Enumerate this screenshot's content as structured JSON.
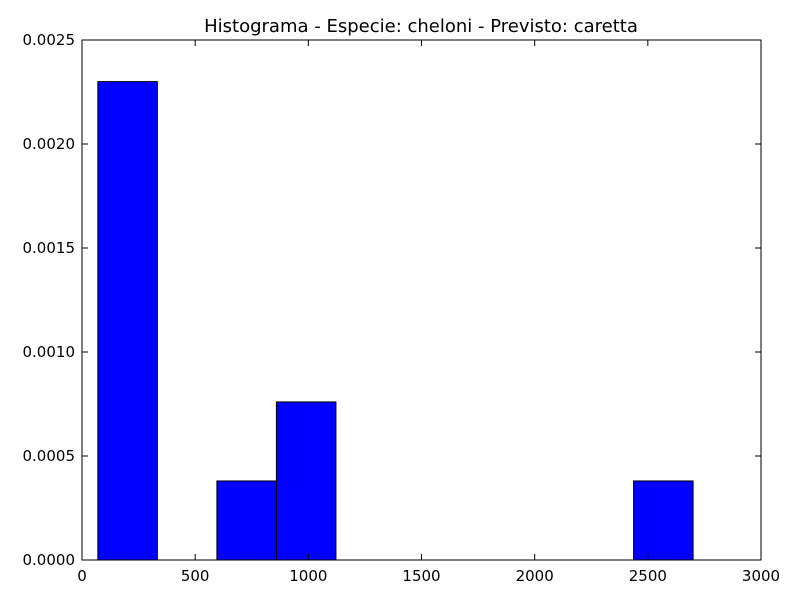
{
  "chart_data": {
    "type": "bar",
    "title": "Histograma - Especie: cheloni - Previsto: caretta",
    "xlabel": "",
    "ylabel": "",
    "xlim": [
      0,
      3000
    ],
    "ylim": [
      0,
      0.0025
    ],
    "x_ticks": [
      "0",
      "500",
      "1000",
      "1500",
      "2000",
      "2500",
      "3000"
    ],
    "y_ticks": [
      "0.0000",
      "0.0005",
      "0.0010",
      "0.0015",
      "0.0020",
      "0.0025"
    ],
    "grid": false,
    "legend": "none",
    "bar_color": "#0000ff",
    "edge_color": "#000000",
    "bins": [
      {
        "x0": 70,
        "x1": 333,
        "value": 0.0023
      },
      {
        "x0": 333,
        "x1": 596,
        "value": 0.0
      },
      {
        "x0": 596,
        "x1": 859,
        "value": 0.00038
      },
      {
        "x0": 859,
        "x1": 1122,
        "value": 0.00076
      },
      {
        "x0": 1122,
        "x1": 1385,
        "value": 0.0
      },
      {
        "x0": 1385,
        "x1": 1648,
        "value": 0.0
      },
      {
        "x0": 1648,
        "x1": 1911,
        "value": 0.0
      },
      {
        "x0": 1911,
        "x1": 2174,
        "value": 0.0
      },
      {
        "x0": 2174,
        "x1": 2437,
        "value": 0.0
      },
      {
        "x0": 2437,
        "x1": 2700,
        "value": 0.00038
      }
    ]
  }
}
